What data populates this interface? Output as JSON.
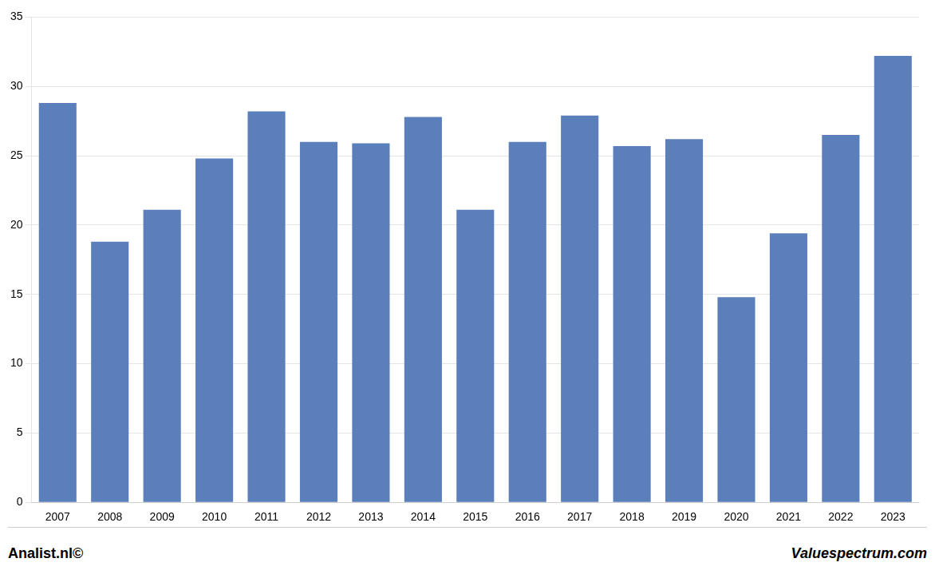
{
  "chart_data": {
    "type": "bar",
    "categories": [
      "2007",
      "2008",
      "2009",
      "2010",
      "2011",
      "2012",
      "2013",
      "2014",
      "2015",
      "2016",
      "2017",
      "2018",
      "2019",
      "2020",
      "2021",
      "2022",
      "2023"
    ],
    "values": [
      28.8,
      18.8,
      21.1,
      24.8,
      28.2,
      26.0,
      25.9,
      27.8,
      21.1,
      26.0,
      27.9,
      25.7,
      26.2,
      14.8,
      19.4,
      26.5,
      32.2
    ],
    "color": "#5b7fbb",
    "ylim": [
      0,
      35
    ],
    "yticks": [
      0,
      5,
      10,
      15,
      20,
      25,
      30,
      35
    ],
    "grid": true,
    "annotations": [
      "Analist.nl©",
      "Valuespectrum.com"
    ]
  }
}
